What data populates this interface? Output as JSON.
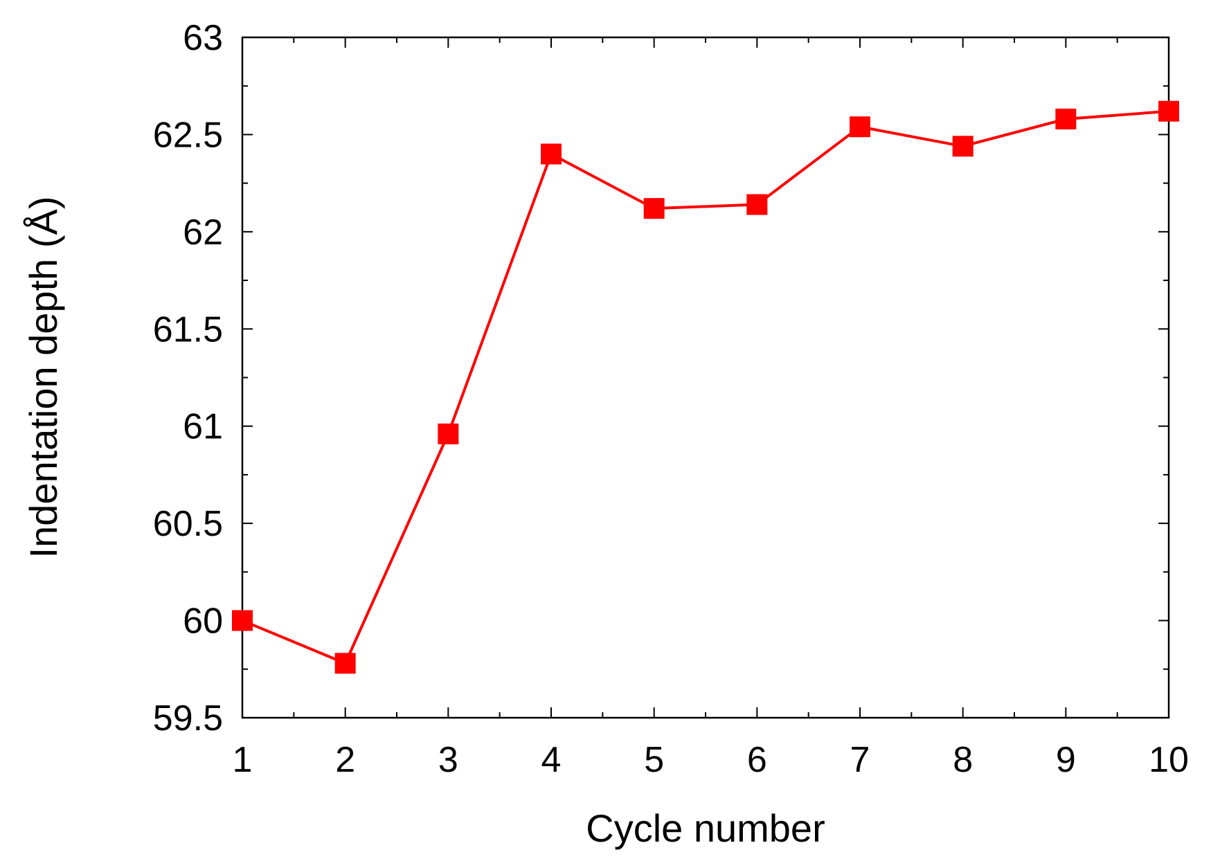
{
  "chart_data": {
    "type": "line",
    "title": "",
    "xlabel": "Cycle number",
    "ylabel": "Indentation depth (Å)",
    "x": [
      1,
      2,
      3,
      4,
      5,
      6,
      7,
      8,
      9,
      10
    ],
    "series": [
      {
        "values": [
          60.0,
          59.78,
          60.96,
          62.4,
          62.12,
          62.14,
          62.54,
          62.44,
          62.58,
          62.62
        ],
        "color": "#ff0000",
        "marker": "square"
      }
    ],
    "xlim": [
      1,
      10
    ],
    "ylim": [
      59.5,
      63
    ],
    "x_ticks": [
      "1",
      "2",
      "3",
      "4",
      "5",
      "6",
      "7",
      "8",
      "9",
      "10"
    ],
    "y_ticks": [
      "59.5",
      "60",
      "60.5",
      "61",
      "61.5",
      "62",
      "62.5",
      "63"
    ],
    "grid": false,
    "legend": "none"
  }
}
